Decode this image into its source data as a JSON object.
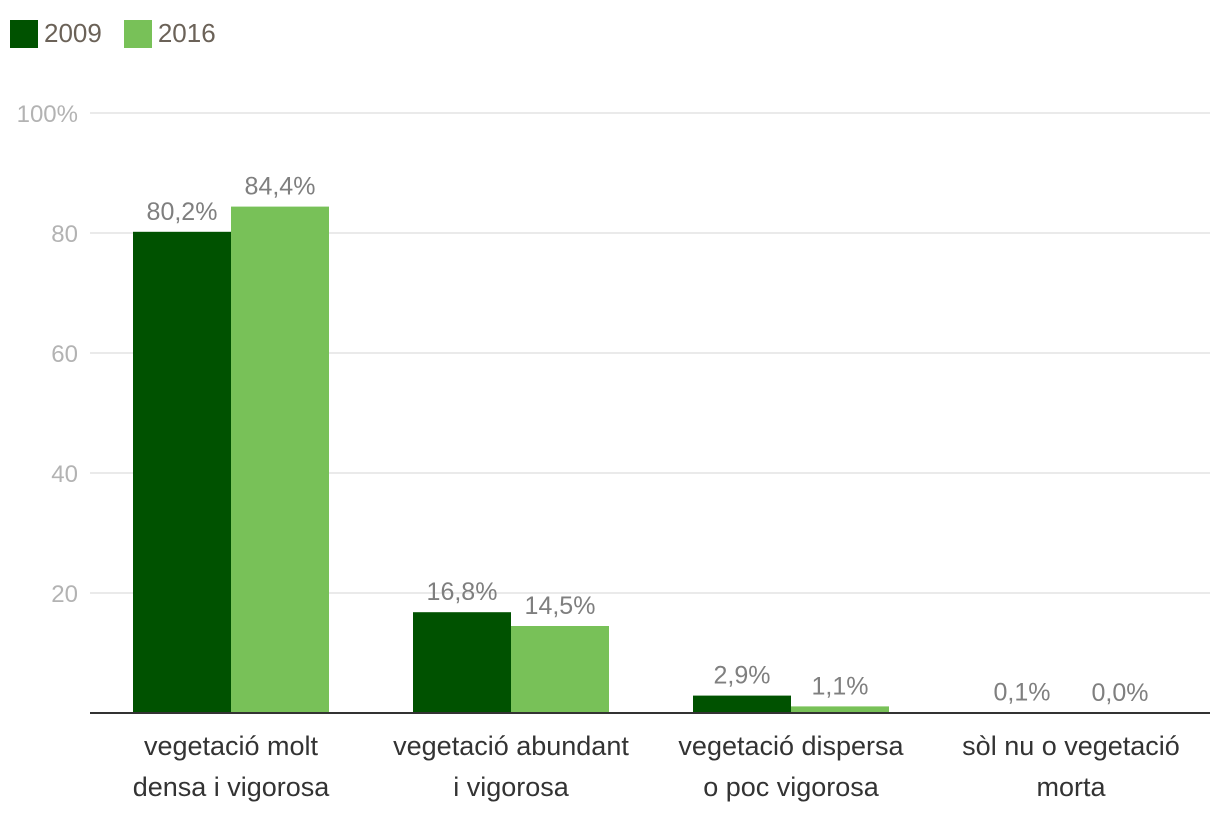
{
  "chart_data": {
    "type": "bar",
    "categories": [
      [
        "vegetació molt",
        "densa i vigorosa"
      ],
      [
        "vegetació abundant",
        "i vigorosa"
      ],
      [
        "vegetació dispersa",
        "o poc vigorosa"
      ],
      [
        "sòl nu o vegetació",
        "morta"
      ]
    ],
    "series": [
      {
        "name": "2009",
        "color": "#005200",
        "values": [
          80.2,
          16.8,
          2.9,
          0.1
        ],
        "labels": [
          "80,2%",
          "16,8%",
          "2,9%",
          "0,1%"
        ]
      },
      {
        "name": "2016",
        "color": "#78c158",
        "values": [
          84.4,
          14.5,
          1.1,
          0.0
        ],
        "labels": [
          "84,4%",
          "14,5%",
          "1,1%",
          "0,0%"
        ]
      }
    ],
    "ylim": [
      0,
      100
    ],
    "yticks": [
      20,
      40,
      60,
      80,
      100
    ],
    "ytick_labels": [
      "20",
      "40",
      "60",
      "80",
      "100%"
    ],
    "legend_position": "top-left",
    "grid": true
  }
}
